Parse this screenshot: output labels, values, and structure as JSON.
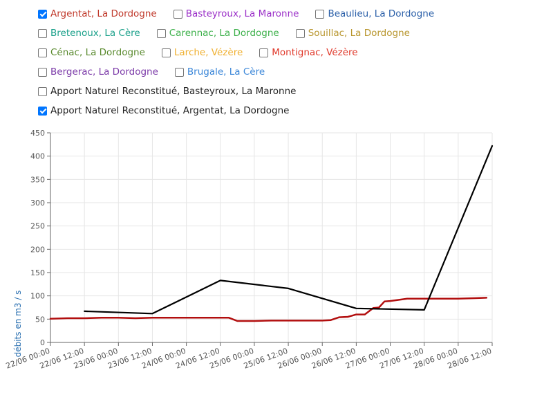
{
  "filters": {
    "rows": [
      [
        {
          "label": "Argentat, La Dordogne",
          "checked": true,
          "color": "#c0392b"
        },
        {
          "label": "Basteyroux, La Maronne",
          "checked": false,
          "color": "#9b30c8"
        },
        {
          "label": "Beaulieu, La Dordogne",
          "checked": false,
          "color": "#2a5fa8"
        }
      ],
      [
        {
          "label": "Bretenoux, La Cère",
          "checked": false,
          "color": "#1aa08a"
        },
        {
          "label": "Carennac, La Dordogne",
          "checked": false,
          "color": "#3cb04a"
        },
        {
          "label": "Souillac, La Dordogne",
          "checked": false,
          "color": "#b8962e"
        }
      ],
      [
        {
          "label": "Cénac, La Dordogne",
          "checked": false,
          "color": "#5a8a2e"
        },
        {
          "label": "Larche, Vézère",
          "checked": false,
          "color": "#f0b030"
        },
        {
          "label": "Montignac, Vézère",
          "checked": false,
          "color": "#e0382a"
        }
      ],
      [
        {
          "label": "Bergerac, La Dordogne",
          "checked": false,
          "color": "#7b3aa8"
        },
        {
          "label": "Brugale, La Cère",
          "checked": false,
          "color": "#3a86d8"
        }
      ],
      [
        {
          "label": "Apport Naturel Reconstitué, Basteyroux, La Maronne",
          "checked": false,
          "color": "#222222"
        }
      ],
      [
        {
          "label": "Apport Naturel Reconstitué, Argentat, La Dordogne",
          "checked": true,
          "color": "#222222"
        }
      ]
    ]
  },
  "chart_data": {
    "type": "line",
    "ylabel": "débits en m3 / s",
    "ylim": [
      0,
      450
    ],
    "yticks": [
      0,
      50,
      100,
      150,
      200,
      250,
      300,
      350,
      400,
      450
    ],
    "x_tick_labels": [
      "22/06 00:00",
      "22/06 12:00",
      "23/06 00:00",
      "23/06 12:00",
      "24/06 00:00",
      "24/06 12:00",
      "25/06 00:00",
      "25/06 12:00",
      "26/06 00:00",
      "26/06 12:00",
      "27/06 00:00",
      "27/06 12:00",
      "28/06 00:00",
      "28/06 12:00"
    ],
    "grid": true,
    "legend": "none",
    "series": [
      {
        "color": "#b20e0e",
        "x": [
          "22/06 00:00",
          "22/06 06:00",
          "22/06 12:00",
          "22/06 18:00",
          "23/06 00:00",
          "23/06 06:00",
          "23/06 12:00",
          "23/06 18:00",
          "24/06 00:00",
          "24/06 06:00",
          "24/06 12:00",
          "24/06 15:00",
          "24/06 18:00",
          "24/06 21:00",
          "25/06 00:00",
          "25/06 06:00",
          "25/06 12:00",
          "25/06 18:00",
          "26/06 00:00",
          "26/06 03:00",
          "26/06 06:00",
          "26/06 09:00",
          "26/06 12:00",
          "26/06 15:00",
          "26/06 18:00",
          "26/06 20:00",
          "26/06 22:00",
          "27/06 00:00",
          "27/06 06:00",
          "27/06 12:00",
          "27/06 18:00",
          "28/06 00:00",
          "28/06 06:00",
          "28/06 10:00"
        ],
        "y": [
          51,
          52,
          52,
          53,
          53,
          52,
          53,
          53,
          53,
          53,
          53,
          53,
          46,
          46,
          46,
          47,
          47,
          47,
          47,
          48,
          54,
          55,
          60,
          60,
          74,
          75,
          88,
          89,
          94,
          94,
          94,
          94,
          95,
          96
        ]
      },
      {
        "color": "#000000",
        "x": [
          "22/06 12:00",
          "23/06 12:00",
          "24/06 12:00",
          "25/06 12:00",
          "26/06 12:00",
          "27/06 12:00",
          "28/06 12:00"
        ],
        "y": [
          67,
          62,
          133,
          116,
          73,
          70,
          422
        ]
      }
    ]
  }
}
